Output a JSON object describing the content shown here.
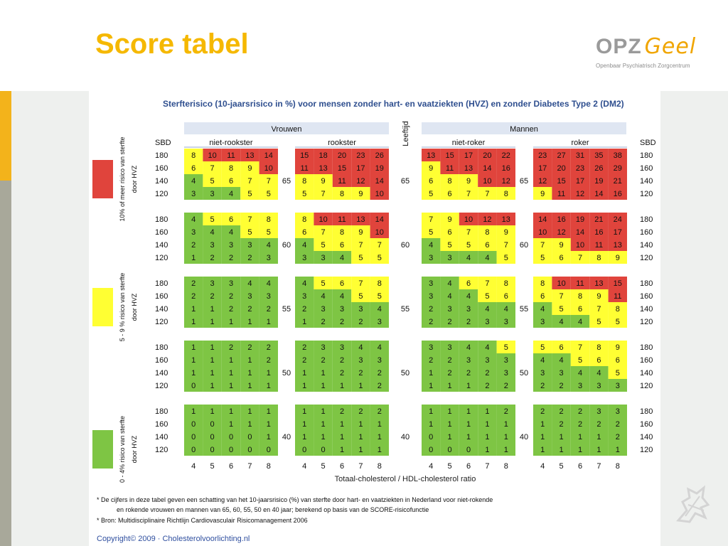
{
  "header": {
    "title": "Score tabel",
    "logo": {
      "name": "OPZ",
      "accent": "Geel",
      "subtitle": "Openbaar Psychiatrisch Zorgcentrum"
    }
  },
  "colors": {
    "title": "#f5b800",
    "red": "#e0443c",
    "yellow": "#ffff33",
    "green": "#7ec544",
    "header": "#dfe6f2"
  },
  "table": {
    "title": "Sterfterisico (10-jaarsrisico in %) voor mensen zonder hart- en vaatziekten (HVZ) en zonder Diabetes Type 2 (DM2)",
    "group_labels": [
      "Vrouwen",
      "Mannen"
    ],
    "sub_labels": [
      "niet-rookster",
      "rookster",
      "niet-roker",
      "roker"
    ],
    "sbd_label": "SBD",
    "age_label": "Leeftijd",
    "sbd_values": [
      "180",
      "160",
      "140",
      "120"
    ],
    "x_values": [
      "4",
      "5",
      "6",
      "7",
      "8"
    ],
    "x_label": "Totaal-cholesterol / HDL-cholesterol ratio",
    "ages": [
      "65",
      "60",
      "55",
      "50",
      "40"
    ],
    "blocks": [
      [
        [
          [
            8,
            10,
            11,
            13,
            14
          ],
          [
            6,
            7,
            8,
            9,
            10
          ],
          [
            4,
            5,
            6,
            7,
            7
          ],
          [
            3,
            3,
            4,
            5,
            5
          ]
        ],
        [
          [
            15,
            18,
            20,
            23,
            26
          ],
          [
            11,
            13,
            15,
            17,
            19
          ],
          [
            8,
            9,
            11,
            12,
            14
          ],
          [
            5,
            7,
            8,
            9,
            10
          ]
        ],
        [
          [
            13,
            15,
            17,
            20,
            22
          ],
          [
            9,
            11,
            13,
            14,
            16
          ],
          [
            6,
            8,
            9,
            10,
            12
          ],
          [
            5,
            6,
            7,
            7,
            8
          ]
        ],
        [
          [
            23,
            27,
            31,
            35,
            38
          ],
          [
            17,
            20,
            23,
            26,
            29
          ],
          [
            12,
            15,
            17,
            19,
            21
          ],
          [
            9,
            11,
            12,
            14,
            16
          ]
        ]
      ],
      [
        [
          [
            4,
            5,
            6,
            7,
            8
          ],
          [
            3,
            4,
            4,
            5,
            5
          ],
          [
            2,
            3,
            3,
            3,
            4
          ],
          [
            1,
            2,
            2,
            2,
            3
          ]
        ],
        [
          [
            8,
            10,
            11,
            13,
            14
          ],
          [
            6,
            7,
            8,
            9,
            10
          ],
          [
            4,
            5,
            6,
            7,
            7
          ],
          [
            3,
            3,
            4,
            5,
            5
          ]
        ],
        [
          [
            7,
            9,
            10,
            12,
            13
          ],
          [
            5,
            6,
            7,
            8,
            9
          ],
          [
            4,
            5,
            5,
            6,
            7
          ],
          [
            3,
            3,
            4,
            4,
            5
          ]
        ],
        [
          [
            14,
            16,
            19,
            21,
            24
          ],
          [
            10,
            12,
            14,
            16,
            17
          ],
          [
            7,
            9,
            10,
            11,
            13
          ],
          [
            5,
            6,
            7,
            8,
            9
          ]
        ]
      ],
      [
        [
          [
            2,
            3,
            3,
            4,
            4
          ],
          [
            2,
            2,
            2,
            3,
            3
          ],
          [
            1,
            1,
            2,
            2,
            2
          ],
          [
            1,
            1,
            1,
            1,
            1
          ]
        ],
        [
          [
            4,
            5,
            6,
            7,
            8
          ],
          [
            3,
            4,
            4,
            5,
            5
          ],
          [
            2,
            3,
            3,
            3,
            4
          ],
          [
            1,
            2,
            2,
            2,
            3
          ]
        ],
        [
          [
            3,
            4,
            6,
            7,
            8
          ],
          [
            3,
            4,
            4,
            5,
            6
          ],
          [
            2,
            3,
            3,
            4,
            4
          ],
          [
            2,
            2,
            2,
            3,
            3
          ]
        ],
        [
          [
            8,
            10,
            11,
            13,
            15
          ],
          [
            6,
            7,
            8,
            9,
            11
          ],
          [
            4,
            5,
            6,
            7,
            8
          ],
          [
            3,
            4,
            4,
            5,
            5
          ]
        ]
      ],
      [
        [
          [
            1,
            1,
            2,
            2,
            2
          ],
          [
            1,
            1,
            1,
            1,
            2
          ],
          [
            1,
            1,
            1,
            1,
            1
          ],
          [
            0,
            1,
            1,
            1,
            1
          ]
        ],
        [
          [
            2,
            3,
            3,
            4,
            4
          ],
          [
            2,
            2,
            2,
            3,
            3
          ],
          [
            1,
            1,
            2,
            2,
            2
          ],
          [
            1,
            1,
            1,
            1,
            2
          ]
        ],
        [
          [
            3,
            3,
            4,
            4,
            5
          ],
          [
            2,
            2,
            3,
            3,
            3
          ],
          [
            1,
            2,
            2,
            2,
            3
          ],
          [
            1,
            1,
            1,
            2,
            2
          ]
        ],
        [
          [
            5,
            6,
            7,
            8,
            9
          ],
          [
            4,
            4,
            5,
            6,
            6
          ],
          [
            3,
            3,
            4,
            4,
            5
          ],
          [
            2,
            2,
            3,
            3,
            3
          ]
        ]
      ],
      [
        [
          [
            1,
            1,
            1,
            1,
            1
          ],
          [
            0,
            0,
            1,
            1,
            1
          ],
          [
            0,
            0,
            0,
            0,
            1
          ],
          [
            0,
            0,
            0,
            0,
            0
          ]
        ],
        [
          [
            1,
            1,
            2,
            2,
            2
          ],
          [
            1,
            1,
            1,
            1,
            1
          ],
          [
            1,
            1,
            1,
            1,
            1
          ],
          [
            0,
            0,
            1,
            1,
            1
          ]
        ],
        [
          [
            1,
            1,
            1,
            1,
            2
          ],
          [
            1,
            1,
            1,
            1,
            1
          ],
          [
            0,
            1,
            1,
            1,
            1
          ],
          [
            0,
            0,
            0,
            1,
            1
          ]
        ],
        [
          [
            2,
            2,
            2,
            3,
            3
          ],
          [
            1,
            2,
            2,
            2,
            2
          ],
          [
            1,
            1,
            1,
            1,
            2
          ],
          [
            1,
            1,
            1,
            1,
            1
          ]
        ]
      ]
    ],
    "legend": [
      {
        "line1": "10% of meer risico van sterfte",
        "line2": "door HVZ",
        "color": "red"
      },
      {
        "line1": "5 - 9 % risico van sterfte",
        "line2": "door HVZ",
        "color": "yellow"
      },
      {
        "line1": "0 - 4% risico van sterfte",
        "line2": "door HVZ",
        "color": "green"
      }
    ],
    "footnotes": [
      "* De cijfers in deze tabel geven een schatting van het 10-jaarsrisico (%) van sterfte door hart- en vaatziekten in Nederland voor niet-rokende",
      "en rokende vrouwen en mannen van 65, 60, 55, 50 en 40 jaar; berekend op basis van de SCORE-risicofunctie",
      "* Bron: Multidisciplinaire Richtlijn Cardiovasculair Risicomanagement 2006"
    ],
    "copyright": "Copyright© 2009 · Cholesterolvoorlichting.nl"
  }
}
